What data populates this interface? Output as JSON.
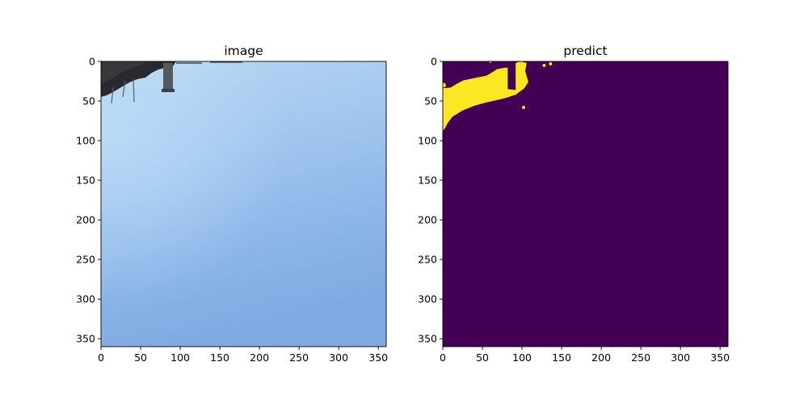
{
  "chart_data": [
    {
      "type": "heatmap",
      "title": "image",
      "xlim": [
        0,
        360
      ],
      "ylim": [
        360,
        0
      ],
      "xticks": [
        "0",
        "50",
        "100",
        "150",
        "200",
        "250",
        "300",
        "350"
      ],
      "yticks": [
        "0",
        "50",
        "100",
        "150",
        "200",
        "250",
        "300",
        "350"
      ],
      "content": "photo",
      "colors": {
        "sky_top": "#c8dcec",
        "sky_light": "#a9cdef",
        "sky_mid": "#8fb7e8",
        "sky_bottom": "#7fabe2",
        "dark": "#2a2a2e",
        "pole": "#555a60"
      }
    },
    {
      "type": "heatmap",
      "title": "predict",
      "xlim": [
        0,
        360
      ],
      "ylim": [
        360,
        0
      ],
      "xticks": [
        "0",
        "50",
        "100",
        "150",
        "200",
        "250",
        "300",
        "350"
      ],
      "yticks": [
        "0",
        "50",
        "100",
        "150",
        "200",
        "250",
        "300",
        "350"
      ],
      "colormap": "viridis",
      "colors": {
        "background": "#440154",
        "foreground": "#fde725"
      },
      "mask_polygon": [
        [
          0,
          88
        ],
        [
          0,
          34
        ],
        [
          10,
          33
        ],
        [
          18,
          28
        ],
        [
          26,
          24
        ],
        [
          35,
          22
        ],
        [
          45,
          20
        ],
        [
          55,
          18
        ],
        [
          62,
          14
        ],
        [
          68,
          10
        ],
        [
          78,
          8
        ],
        [
          82,
          8
        ],
        [
          82,
          35
        ],
        [
          92,
          36
        ],
        [
          92,
          2
        ],
        [
          98,
          0
        ],
        [
          106,
          2
        ],
        [
          104,
          12
        ],
        [
          108,
          26
        ],
        [
          103,
          34
        ],
        [
          92,
          42
        ],
        [
          80,
          46
        ],
        [
          68,
          49
        ],
        [
          54,
          52
        ],
        [
          40,
          56
        ],
        [
          25,
          62
        ],
        [
          12,
          70
        ],
        [
          6,
          78
        ],
        [
          3,
          84
        ]
      ],
      "specks": [
        [
          1,
          30,
          3
        ],
        [
          102,
          58,
          2
        ],
        [
          128,
          5,
          2
        ],
        [
          136,
          3,
          2
        ],
        [
          60,
          1,
          1
        ]
      ]
    }
  ]
}
